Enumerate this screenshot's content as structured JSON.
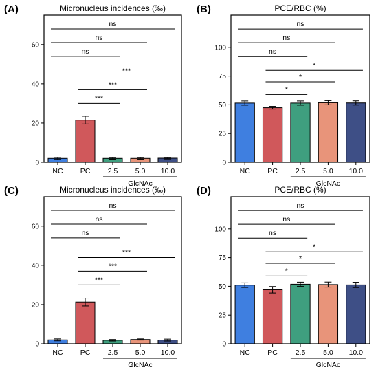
{
  "chart_data": [
    {
      "panel": "(A)",
      "type": "bar",
      "title": "Micronucleus incidences (‰)",
      "categories": [
        "NC",
        "PC",
        "2.5",
        "5.0",
        "10.0"
      ],
      "group_label": "GlcNAc",
      "values": [
        2.0,
        21.5,
        2.0,
        2.0,
        2.1
      ],
      "errors": [
        0.5,
        2.0,
        0.4,
        0.4,
        0.4
      ],
      "colors": [
        "#3f7fe0",
        "#d0585b",
        "#3f9f7f",
        "#e8947a",
        "#3e4f86"
      ],
      "ylim": [
        0,
        75
      ],
      "yticks": [
        0,
        20,
        40,
        60
      ],
      "comparisons": [
        {
          "from": 0,
          "to": 4,
          "y": 68,
          "label": "ns"
        },
        {
          "from": 0,
          "to": 3,
          "y": 61,
          "label": "ns"
        },
        {
          "from": 0,
          "to": 2,
          "y": 54,
          "label": "ns"
        },
        {
          "from": 1,
          "to": 4,
          "y": 44,
          "label": "***"
        },
        {
          "from": 1,
          "to": 3,
          "y": 37,
          "label": "***"
        },
        {
          "from": 1,
          "to": 2,
          "y": 30,
          "label": "***"
        }
      ]
    },
    {
      "panel": "(B)",
      "type": "bar",
      "title": "PCE/RBC (%)",
      "categories": [
        "NC",
        "PC",
        "2.5",
        "5.0",
        "10.0"
      ],
      "group_label": "GlcNAc",
      "values": [
        51.5,
        47.5,
        51.5,
        51.8,
        51.6
      ],
      "errors": [
        1.8,
        1.2,
        1.8,
        1.8,
        1.8
      ],
      "colors": [
        "#3f7fe0",
        "#d0585b",
        "#3f9f7f",
        "#e8947a",
        "#3e4f86"
      ],
      "ylim": [
        0,
        128
      ],
      "yticks": [
        0,
        25,
        50,
        75,
        100
      ],
      "comparisons": [
        {
          "from": 0,
          "to": 4,
          "y": 116,
          "label": "ns"
        },
        {
          "from": 0,
          "to": 3,
          "y": 104,
          "label": "ns"
        },
        {
          "from": 0,
          "to": 2,
          "y": 92,
          "label": "ns"
        },
        {
          "from": 1,
          "to": 4,
          "y": 80,
          "label": "*"
        },
        {
          "from": 1,
          "to": 3,
          "y": 70,
          "label": "*"
        },
        {
          "from": 1,
          "to": 2,
          "y": 59,
          "label": "*"
        }
      ]
    },
    {
      "panel": "(C)",
      "type": "bar",
      "title": "Micronucleus incidences (‰)",
      "categories": [
        "NC",
        "PC",
        "2.5",
        "5.0",
        "10.0"
      ],
      "group_label": "GlcNAc",
      "values": [
        2.0,
        21.3,
        1.8,
        2.2,
        1.9
      ],
      "errors": [
        0.5,
        2.0,
        0.4,
        0.3,
        0.5
      ],
      "colors": [
        "#3f7fe0",
        "#d0585b",
        "#3f9f7f",
        "#e8947a",
        "#3e4f86"
      ],
      "ylim": [
        0,
        75
      ],
      "yticks": [
        0,
        20,
        40,
        60
      ],
      "comparisons": [
        {
          "from": 0,
          "to": 4,
          "y": 68,
          "label": "ns"
        },
        {
          "from": 0,
          "to": 3,
          "y": 61,
          "label": "ns"
        },
        {
          "from": 0,
          "to": 2,
          "y": 54,
          "label": "ns"
        },
        {
          "from": 1,
          "to": 4,
          "y": 44,
          "label": "***"
        },
        {
          "from": 1,
          "to": 3,
          "y": 37,
          "label": "***"
        },
        {
          "from": 1,
          "to": 2,
          "y": 30,
          "label": "***"
        }
      ]
    },
    {
      "panel": "(D)",
      "type": "bar",
      "title": "PCE/RBC (%)",
      "categories": [
        "NC",
        "PC",
        "2.5",
        "5.0",
        "10.0"
      ],
      "group_label": "GlcNAc",
      "values": [
        51.0,
        47.0,
        51.8,
        51.5,
        51.2
      ],
      "errors": [
        2.0,
        2.8,
        1.8,
        2.2,
        2.3
      ],
      "colors": [
        "#3f7fe0",
        "#d0585b",
        "#3f9f7f",
        "#e8947a",
        "#3e4f86"
      ],
      "ylim": [
        0,
        128
      ],
      "yticks": [
        0,
        25,
        50,
        75,
        100
      ],
      "comparisons": [
        {
          "from": 0,
          "to": 4,
          "y": 116,
          "label": "ns"
        },
        {
          "from": 0,
          "to": 3,
          "y": 104,
          "label": "ns"
        },
        {
          "from": 0,
          "to": 2,
          "y": 92,
          "label": "ns"
        },
        {
          "from": 1,
          "to": 4,
          "y": 80,
          "label": "*"
        },
        {
          "from": 1,
          "to": 3,
          "y": 70,
          "label": "*"
        },
        {
          "from": 1,
          "to": 2,
          "y": 59,
          "label": "*"
        }
      ]
    }
  ]
}
